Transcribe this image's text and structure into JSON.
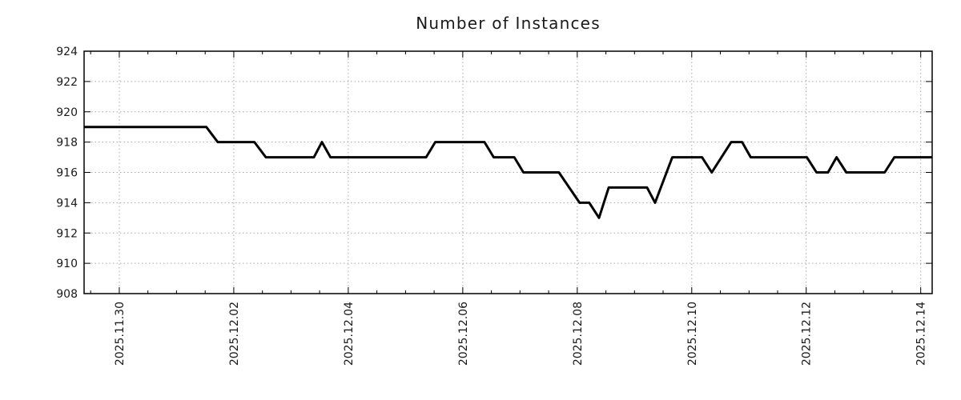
{
  "chart_data": {
    "type": "line",
    "title": "Number of Instances",
    "xlabel": "",
    "ylabel": "",
    "grid": {
      "show": true,
      "style": "dotted",
      "color": "#a8a8a8"
    },
    "x_axis": {
      "unit": "days_since_2025.11.30",
      "range_days": [
        -0.615,
        14.2
      ],
      "minor_tick_interval_days": 0.5,
      "major_ticks": [
        {
          "day": 0,
          "label": "2025.11.30"
        },
        {
          "day": 2,
          "label": "2025.12.02"
        },
        {
          "day": 4,
          "label": "2025.12.04"
        },
        {
          "day": 6,
          "label": "2025.12.06"
        },
        {
          "day": 8,
          "label": "2025.12.08"
        },
        {
          "day": 10,
          "label": "2025.12.10"
        },
        {
          "day": 12,
          "label": "2025.12.12"
        },
        {
          "day": 14,
          "label": "2025.12.14"
        }
      ]
    },
    "y_axis": {
      "range": [
        908,
        924
      ],
      "ticks": [
        908,
        910,
        912,
        914,
        916,
        918,
        920,
        922,
        924
      ]
    },
    "series": [
      {
        "name": "instances",
        "color": "#000000",
        "points_day_value": [
          [
            -0.62,
            919
          ],
          [
            1.52,
            919
          ],
          [
            1.72,
            918
          ],
          [
            2.36,
            918
          ],
          [
            2.56,
            917
          ],
          [
            3.4,
            917
          ],
          [
            3.54,
            918
          ],
          [
            3.69,
            917
          ],
          [
            5.36,
            917
          ],
          [
            5.52,
            918
          ],
          [
            6.38,
            918
          ],
          [
            6.54,
            917
          ],
          [
            6.9,
            917
          ],
          [
            7.06,
            916
          ],
          [
            7.68,
            916
          ],
          [
            8.04,
            914
          ],
          [
            8.21,
            914
          ],
          [
            8.38,
            913
          ],
          [
            8.55,
            915
          ],
          [
            9.22,
            915
          ],
          [
            9.36,
            914
          ],
          [
            9.66,
            917
          ],
          [
            10.18,
            917
          ],
          [
            10.35,
            916
          ],
          [
            10.69,
            918
          ],
          [
            10.88,
            918
          ],
          [
            11.03,
            917
          ],
          [
            12.01,
            917
          ],
          [
            12.18,
            916
          ],
          [
            12.38,
            916
          ],
          [
            12.53,
            917
          ],
          [
            12.7,
            916
          ],
          [
            13.37,
            916
          ],
          [
            13.54,
            917
          ],
          [
            14.2,
            917
          ]
        ]
      }
    ]
  }
}
